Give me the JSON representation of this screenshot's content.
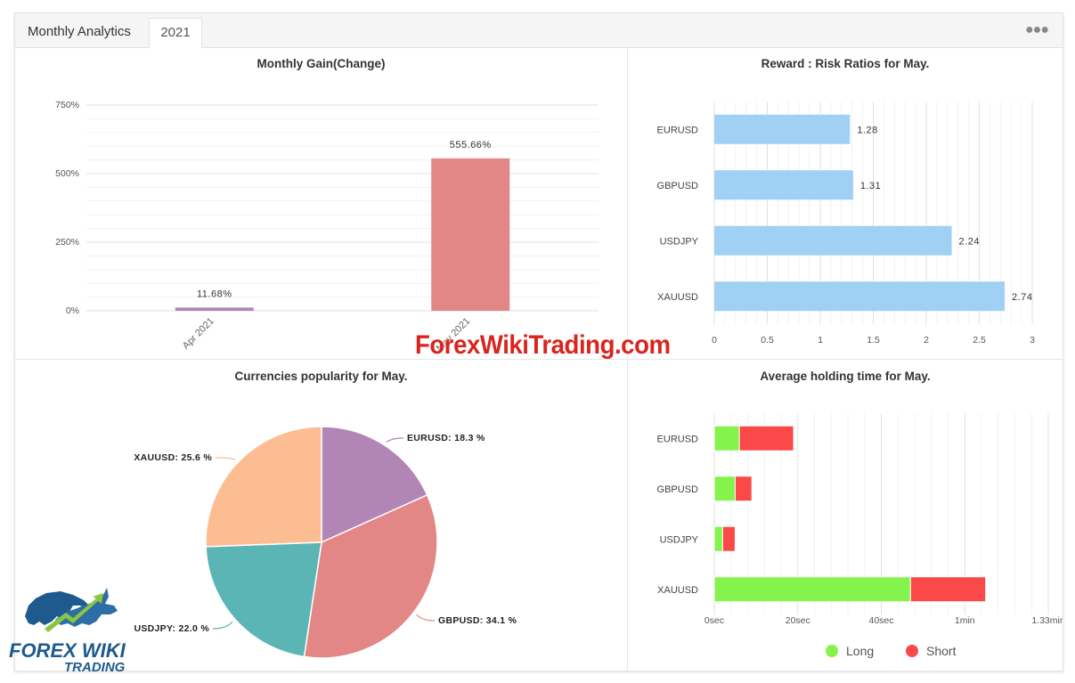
{
  "header": {
    "title": "Monthly Analytics",
    "tab": "2021",
    "menu_icon": "ellipsis-icon"
  },
  "gain": {
    "title": "Monthly Gain(Change)",
    "yticks": [
      "750%",
      "500%",
      "250%",
      "0%"
    ],
    "chart_data": {
      "type": "bar",
      "categories": [
        "Apr 2021",
        "May 2021"
      ],
      "values": [
        11.68,
        555.66
      ],
      "labels": [
        "11.68%",
        "555.66%"
      ],
      "ylim": [
        0,
        750
      ],
      "colors": [
        "#b185b6",
        "#e28785"
      ]
    }
  },
  "rr": {
    "title": "Reward : Risk Ratios for May.",
    "xticks": [
      "0",
      "0.5",
      "1",
      "1.5",
      "2",
      "2.5",
      "3"
    ],
    "chart_data": {
      "type": "bar",
      "orientation": "horizontal",
      "categories": [
        "EURUSD",
        "GBPUSD",
        "USDJPY",
        "XAUUSD"
      ],
      "values": [
        1.28,
        1.31,
        2.24,
        2.74
      ],
      "labels": [
        "1.28",
        "1.31",
        "2.24",
        "2.74"
      ],
      "xlim": [
        0,
        3
      ],
      "color": "#a0d1f5"
    }
  },
  "pie": {
    "title": "Currencies popularity for May.",
    "chart_data": {
      "type": "pie",
      "slices": [
        {
          "name": "EURUSD",
          "value": 18.3,
          "label": "EURUSD: 18.3 %",
          "color": "#b185b6"
        },
        {
          "name": "GBPUSD",
          "value": 34.1,
          "label": "GBPUSD: 34.1 %",
          "color": "#e28785"
        },
        {
          "name": "USDJPY",
          "value": 22.0,
          "label": "USDJPY: 22.0 %",
          "color": "#5bb5b5"
        },
        {
          "name": "XAUUSD",
          "value": 25.6,
          "label": "XAUUSD: 25.6 %",
          "color": "#fdbd92"
        }
      ]
    }
  },
  "hold": {
    "title": "Average holding time for May.",
    "xticks": [
      "0sec",
      "20sec",
      "40sec",
      "1min",
      "1.33min"
    ],
    "legend": {
      "long": "Long",
      "short": "Short"
    },
    "chart_data": {
      "type": "bar",
      "orientation": "horizontal",
      "stacked": true,
      "unit": "seconds",
      "categories": [
        "EURUSD",
        "GBPUSD",
        "USDJPY",
        "XAUUSD"
      ],
      "xlim": [
        0,
        80
      ],
      "series": [
        {
          "name": "Long",
          "values": [
            6,
            5,
            2,
            47
          ],
          "color": "#84f34b"
        },
        {
          "name": "Short",
          "values": [
            13,
            4,
            3,
            18
          ],
          "color": "#fb4848"
        }
      ]
    }
  },
  "watermark": "ForexWikiTrading.com",
  "logo": {
    "line1": "FOREX WIKI",
    "line2": "TRADING"
  }
}
